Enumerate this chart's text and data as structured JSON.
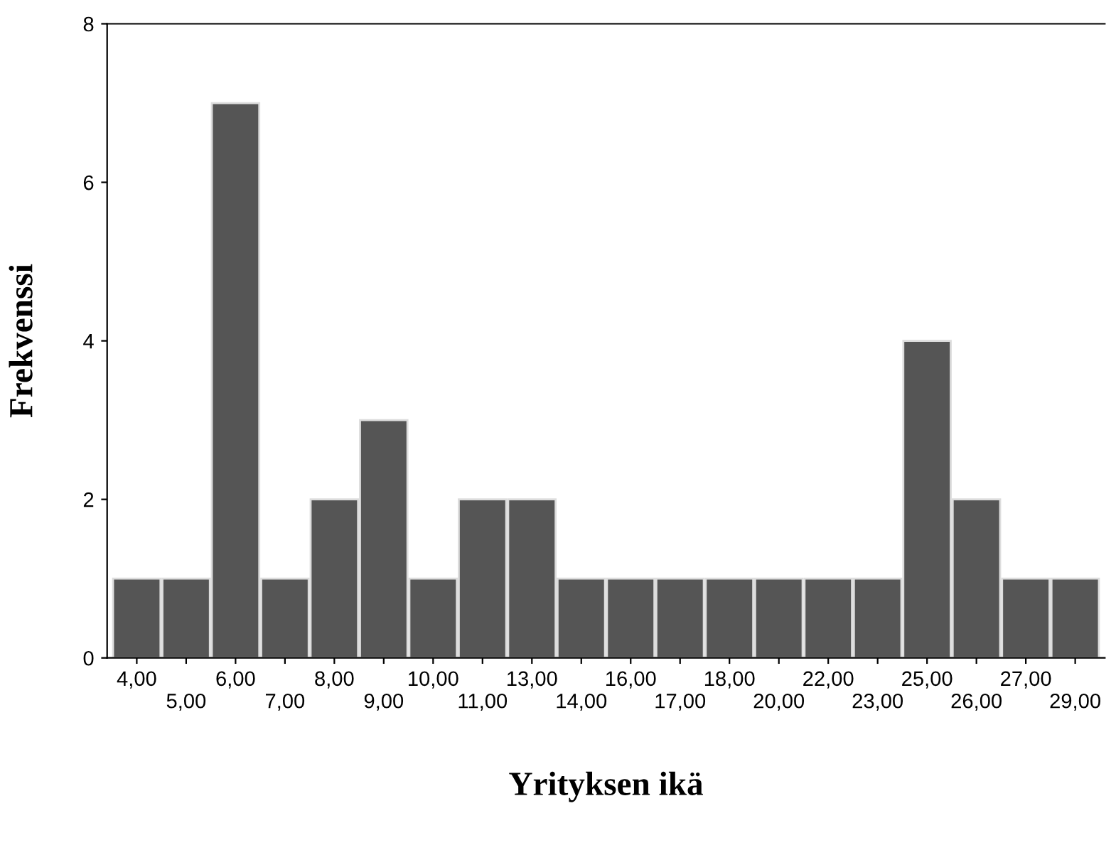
{
  "chart_data": {
    "type": "bar",
    "xlabel": "Yrityksen ikä",
    "ylabel": "Frekvenssi",
    "categories": [
      "4,00",
      "5,00",
      "6,00",
      "7,00",
      "8,00",
      "9,00",
      "10,00",
      "11,00",
      "13,00",
      "14,00",
      "16,00",
      "17,00",
      "18,00",
      "20,00",
      "22,00",
      "23,00",
      "25,00",
      "26,00",
      "27,00",
      "29,00"
    ],
    "values": [
      1,
      1,
      7,
      1,
      2,
      3,
      1,
      2,
      2,
      1,
      1,
      1,
      1,
      1,
      1,
      1,
      4,
      2,
      1,
      1
    ],
    "color": "#555555",
    "ylim": [
      0,
      8
    ],
    "yticks": [
      0,
      2,
      4,
      6,
      8
    ],
    "grid": false
  }
}
